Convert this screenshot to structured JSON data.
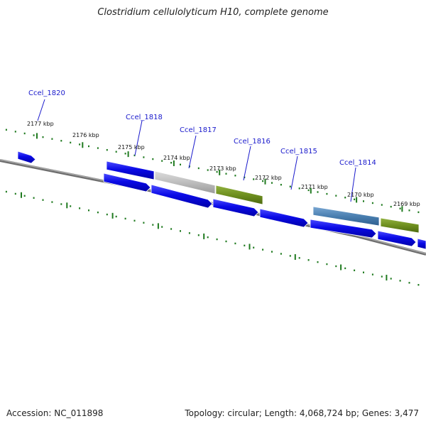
{
  "title": "Clostridium cellulolyticum H10, complete genome",
  "footer": {
    "accession": "Accession: NC_011898",
    "stats": "Topology: circular; Length: 4,068,724 bp; Genes: 3,477"
  },
  "colors": {
    "cds_blue": "#0a0ae6",
    "pseudo_gray": "#bdbdbd",
    "hypothetical_green": "#6e8f1f",
    "steelblue": "#4a7fb0",
    "tick_green": "#1f7a1f",
    "backbone_gray": "#8a8a8a",
    "label_blue": "#1a1acc"
  },
  "tick_labels": [
    "2177 kbp",
    "2176 kbp",
    "2175 kbp",
    "2174 kbp",
    "2173 kbp",
    "2172 kbp",
    "2171 kbp",
    "2170 kbp",
    "2169 kbp"
  ],
  "gene_labels": [
    "Ccel_1820",
    "Ccel_1818",
    "Ccel_1817",
    "Ccel_1816",
    "Ccel_1815",
    "Ccel_1814"
  ]
}
